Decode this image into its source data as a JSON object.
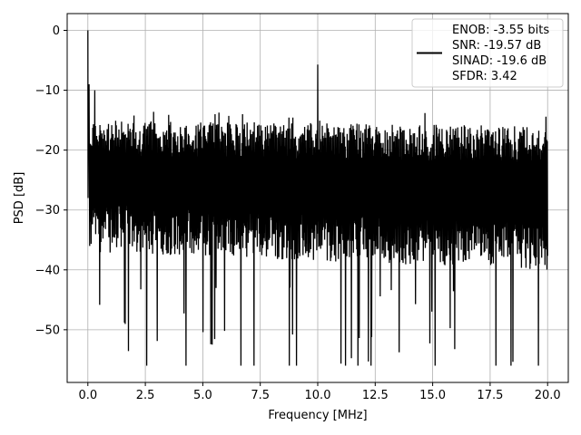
{
  "chart_data": {
    "type": "line",
    "title": "",
    "xlabel": "Frequency [MHz]",
    "ylabel": "PSD [dB]",
    "xlim": [
      -0.9,
      20.9
    ],
    "ylim": [
      -58.8,
      2.8
    ],
    "grid": true,
    "legend_position": "top-right",
    "x_ticks": [
      0.0,
      2.5,
      5.0,
      7.5,
      10.0,
      12.5,
      15.0,
      17.5,
      20.0
    ],
    "x_tick_labels": [
      "0.0",
      "2.5",
      "5.0",
      "7.5",
      "10.0",
      "12.5",
      "15.0",
      "17.5",
      "20.0"
    ],
    "y_ticks": [
      0,
      -10,
      -20,
      -30,
      -40,
      -50
    ],
    "y_tick_labels": [
      "0",
      "−10",
      "−20",
      "−30",
      "−40",
      "−50"
    ],
    "legend_lines": [
      "ENOB: -3.55 bits",
      "SNR: -19.57 dB",
      "SINAD: -19.6 dB",
      "SFDR: 3.42"
    ],
    "series_color": "#000000",
    "series": [
      {
        "x_start": 0.0,
        "x_end": 20.0,
        "noise_floor_top_db": [
          -15,
          -16
        ],
        "noise_floor_bottom_db": [
          -37,
          -40
        ],
        "noise_dip_min_db": -56,
        "peaks": [
          {
            "x": 0.0,
            "y": 0.0
          },
          {
            "x": 0.05,
            "y": -9.0
          },
          {
            "x": 0.3,
            "y": -10.0
          },
          {
            "x": 10.0,
            "y": -5.7
          }
        ]
      }
    ]
  }
}
